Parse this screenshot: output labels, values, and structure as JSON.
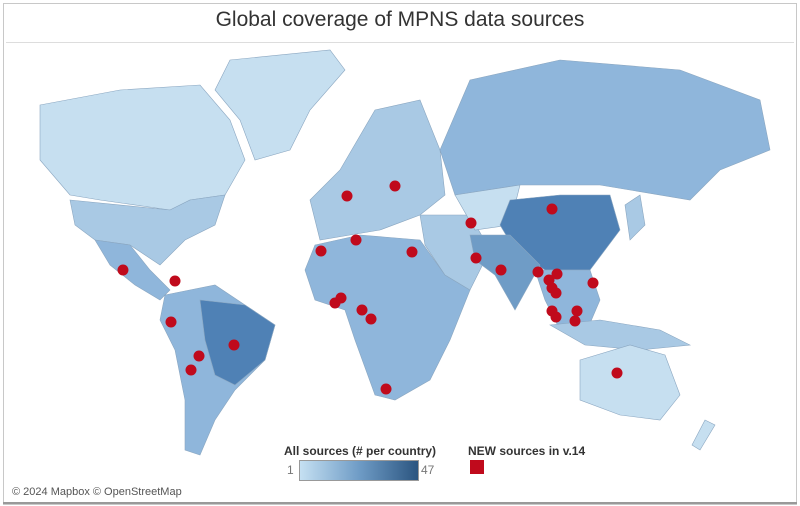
{
  "title": "Global coverage of MPNS data sources",
  "legend": {
    "all_sources_title": "All sources (# per country)",
    "min": "1",
    "max": "47",
    "color_low": "#c5e0f2",
    "color_high": "#2b5580",
    "new_sources_title": "NEW sources in v.14",
    "new_color": "#c00a1c"
  },
  "attribution": "© 2024 Mapbox © OpenStreetMap"
}
